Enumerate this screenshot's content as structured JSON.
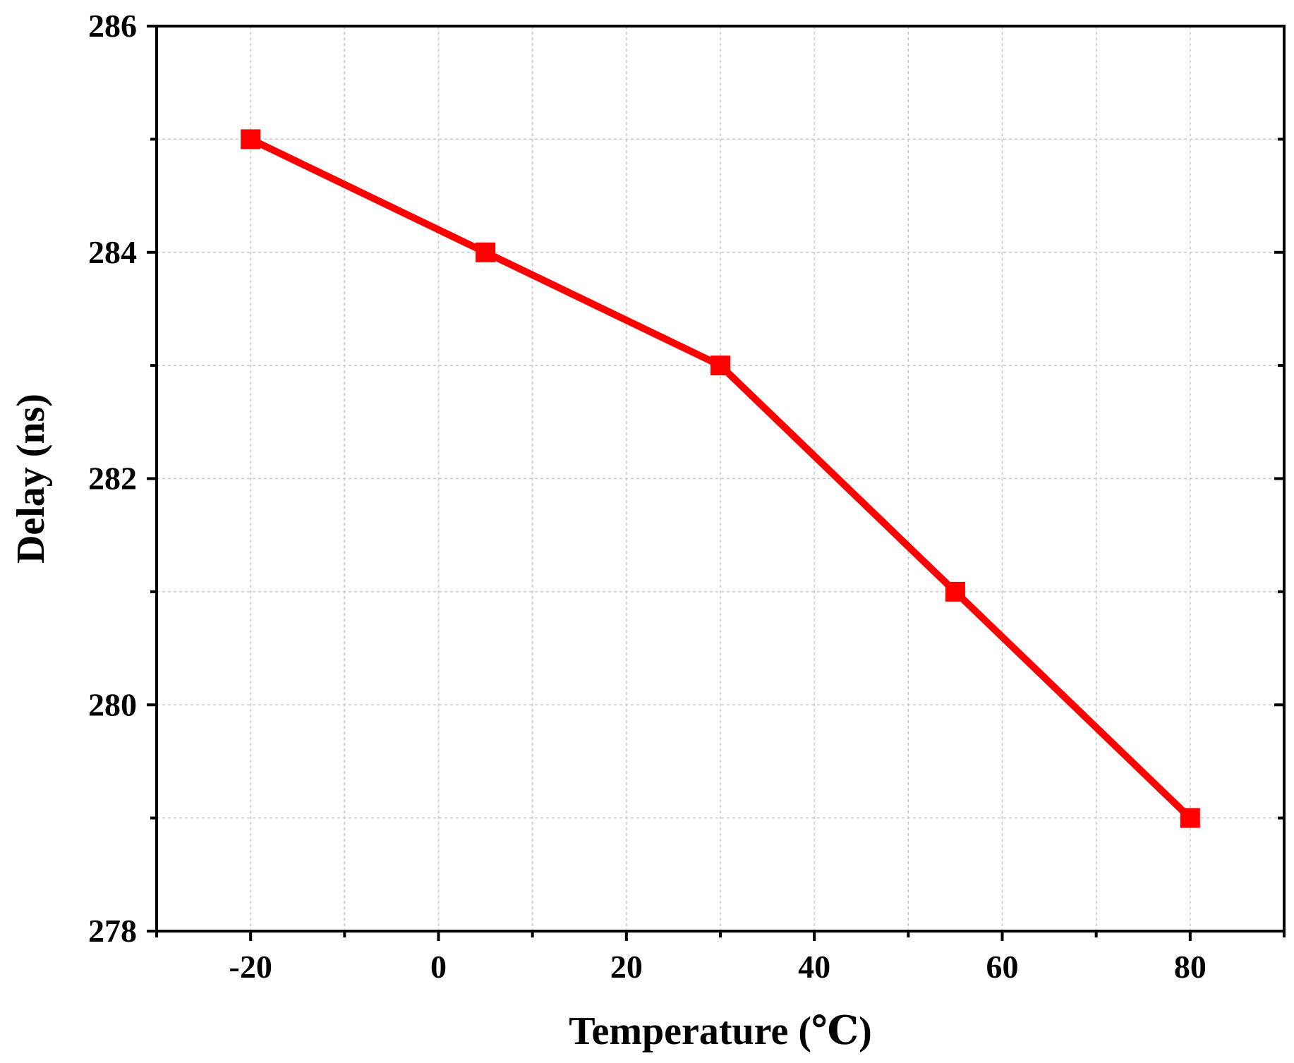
{
  "chart_data": {
    "type": "line",
    "title": "",
    "xlabel": "Temperature (℃)",
    "ylabel": "Delay (ns)",
    "xlim": [
      -30,
      90
    ],
    "ylim": [
      278,
      286
    ],
    "x_ticks": [
      -20,
      0,
      20,
      40,
      60,
      80
    ],
    "x_tick_labels": [
      "-20",
      "0",
      "20",
      "40",
      "60",
      "80"
    ],
    "x_minor_ticks": [
      -30,
      -10,
      10,
      30,
      50,
      70,
      90
    ],
    "y_ticks": [
      278,
      280,
      282,
      284,
      286
    ],
    "y_tick_labels": [
      "278",
      "280",
      "282",
      "284",
      "286"
    ],
    "y_minor_ticks": [
      279,
      281,
      283,
      285
    ],
    "grid": true,
    "legend": "none",
    "series": [
      {
        "x": [
          -20,
          5,
          30,
          55,
          80
        ],
        "values": [
          285,
          284,
          283,
          281,
          279
        ],
        "color": "#ff0000",
        "marker": "square"
      }
    ]
  }
}
